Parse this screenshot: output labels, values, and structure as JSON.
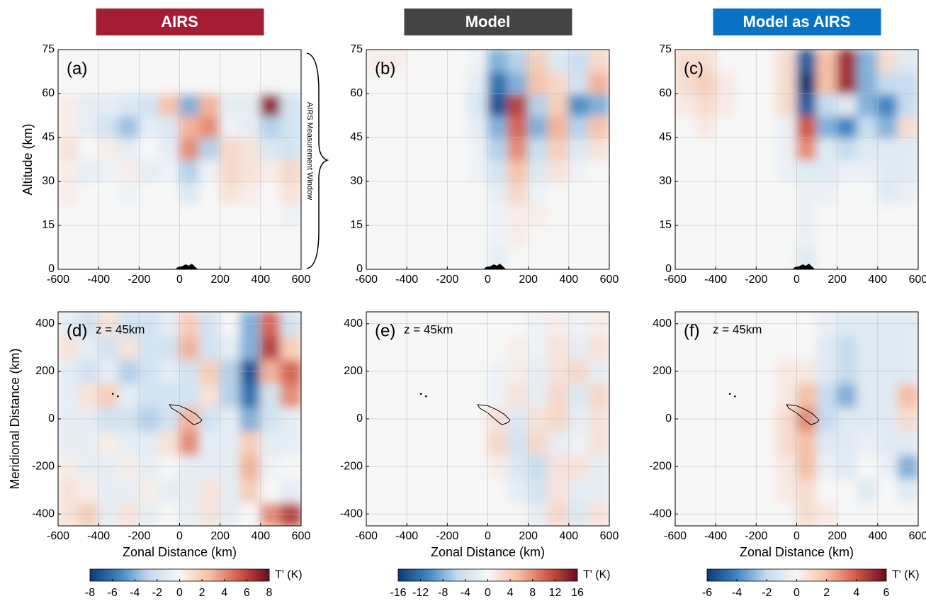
{
  "chart_data": [
    {
      "type": "heatmap",
      "title": "AIRS",
      "title_color": "#a51d32",
      "panel_label": "(a)",
      "ylabel": "Altitude (km)",
      "window_label": "AIRS Measurement Window",
      "x": [
        -550,
        -450,
        -350,
        -250,
        -150,
        -50,
        50,
        150,
        250,
        350,
        450,
        550
      ],
      "y": [
        3.75,
        11.25,
        18.75,
        26.25,
        33.75,
        41.25,
        48.75,
        56.25,
        63.75,
        71.25
      ],
      "z": [
        [
          0,
          0,
          0,
          0,
          0,
          0,
          0,
          0,
          0,
          0,
          0,
          0
        ],
        [
          0,
          0,
          0,
          0,
          0,
          0,
          0,
          0,
          0,
          0,
          0,
          0
        ],
        [
          0,
          0,
          0,
          0,
          0,
          0,
          0,
          0,
          0,
          0,
          0,
          -0.5
        ],
        [
          0.5,
          0,
          0,
          -0.5,
          0,
          0,
          -1.5,
          0,
          1,
          0.5,
          0,
          1
        ],
        [
          0.5,
          -1,
          -0.5,
          0.5,
          -1,
          -0.5,
          -3,
          -0.5,
          1.5,
          1,
          0.5,
          1.5
        ],
        [
          1,
          0,
          0.5,
          -1,
          0,
          -1,
          4,
          -3,
          1.5,
          1,
          -1.5,
          -2
        ],
        [
          0.5,
          -1,
          -2,
          -3.5,
          -1,
          -1.5,
          3,
          4,
          -0.5,
          -1,
          -3,
          -2
        ],
        [
          0.5,
          -1,
          -1,
          -1.5,
          -2,
          2.5,
          -4,
          3,
          -1,
          -1,
          7,
          -2
        ],
        [
          0,
          0,
          0,
          0,
          0,
          0,
          0,
          0,
          0,
          0,
          0,
          0
        ],
        [
          0,
          0,
          0,
          0,
          0,
          0,
          0,
          0,
          0,
          0,
          0,
          0
        ]
      ],
      "clim": [
        -8,
        8
      ],
      "colormap": [
        "#0b3b78",
        "#3f86c2",
        "#c6dcef",
        "#f7f7f7",
        "#f6c0a6",
        "#d2594a",
        "#6b0a1e"
      ],
      "xlim": [
        -600,
        600
      ],
      "ylim": [
        0,
        75
      ],
      "xticks": [
        -600,
        -400,
        -200,
        0,
        200,
        400,
        600
      ],
      "yticks": [
        0,
        15,
        30,
        45,
        60,
        75
      ],
      "grid": true
    },
    {
      "type": "heatmap",
      "title": "Model",
      "title_color": "#444444",
      "panel_label": "(b)",
      "x": [
        -550,
        -450,
        -350,
        -250,
        -150,
        -50,
        50,
        150,
        250,
        350,
        450,
        550
      ],
      "y": [
        3.75,
        11.25,
        18.75,
        26.25,
        33.75,
        41.25,
        48.75,
        56.25,
        63.75,
        71.25
      ],
      "z": [
        [
          0,
          0,
          0,
          0,
          0,
          0,
          -2,
          0,
          0,
          0,
          0,
          0
        ],
        [
          0,
          0,
          0,
          0,
          0,
          0,
          -1,
          1,
          0,
          0,
          0,
          0
        ],
        [
          0,
          0,
          0,
          0,
          0,
          0,
          -1,
          1,
          1,
          0,
          0,
          0
        ],
        [
          0,
          0,
          0,
          0,
          0,
          0,
          -2,
          3,
          -1,
          0,
          0,
          0
        ],
        [
          0,
          0,
          0,
          0,
          0,
          -1,
          -4,
          5,
          -3,
          2,
          -1,
          0
        ],
        [
          0,
          0,
          0,
          0,
          0,
          -1,
          -6,
          8,
          -5,
          4,
          -3,
          2
        ],
        [
          0,
          0,
          0,
          0,
          0,
          -2,
          -8,
          10,
          -8,
          6,
          -6,
          5
        ],
        [
          0,
          0,
          0,
          0,
          0,
          -3,
          -14,
          12,
          -6,
          4,
          -10,
          -8
        ],
        [
          0,
          0,
          0,
          0,
          0,
          -2,
          -12,
          -8,
          5,
          3,
          -4,
          6
        ],
        [
          1,
          1,
          0,
          0,
          0,
          -1,
          -8,
          -6,
          4,
          -3,
          -5,
          3
        ]
      ],
      "clim": [
        -16,
        16
      ],
      "colormap": [
        "#0b3b78",
        "#3f86c2",
        "#c6dcef",
        "#f7f7f7",
        "#f6c0a6",
        "#d2594a",
        "#6b0a1e"
      ],
      "xlim": [
        -600,
        600
      ],
      "ylim": [
        0,
        75
      ],
      "xticks": [
        -600,
        -400,
        -200,
        0,
        200,
        400,
        600
      ],
      "yticks": [
        0,
        15,
        30,
        45,
        60,
        75
      ],
      "grid": true
    },
    {
      "type": "heatmap",
      "title": "Model as AIRS",
      "title_color": "#0a72c4",
      "panel_label": "(c)",
      "x": [
        -550,
        -450,
        -350,
        -250,
        -150,
        -50,
        50,
        150,
        250,
        350,
        450,
        550
      ],
      "y": [
        3.75,
        11.25,
        18.75,
        26.25,
        33.75,
        41.25,
        48.75,
        56.25,
        63.75,
        71.25
      ],
      "z": [
        [
          0,
          0,
          0,
          0,
          0,
          0,
          -1,
          0,
          0,
          0,
          0,
          0
        ],
        [
          0,
          0,
          0,
          0,
          0,
          0,
          -0.5,
          0,
          0,
          0,
          0,
          0
        ],
        [
          0,
          0,
          0,
          0,
          0,
          0,
          -0.5,
          0,
          0,
          0,
          0,
          0
        ],
        [
          0,
          0,
          0,
          0,
          0,
          0,
          -0.5,
          -0.5,
          0,
          0,
          -1,
          -0.5
        ],
        [
          0,
          0,
          0,
          0,
          0,
          -0.5,
          -1,
          -1,
          -0.5,
          -0.5,
          -1,
          -1
        ],
        [
          0,
          0,
          0,
          0,
          0,
          -0.5,
          3,
          -1,
          -2,
          -1,
          -1,
          -1
        ],
        [
          0,
          0.5,
          0,
          0,
          0,
          -0.5,
          4,
          -3,
          -4,
          -2,
          -3,
          1
        ],
        [
          0.5,
          1,
          0.5,
          0,
          0,
          1,
          -5,
          -2,
          -1,
          -3,
          -4,
          -2
        ],
        [
          1,
          1.5,
          0.5,
          0,
          0,
          1,
          -6,
          2,
          5,
          -3,
          -2,
          -2
        ],
        [
          1,
          1,
          0,
          0,
          0,
          1,
          -5,
          2,
          5,
          -3,
          1,
          -1
        ]
      ],
      "clim": [
        -6,
        6
      ],
      "colormap": [
        "#0b3b78",
        "#3f86c2",
        "#c6dcef",
        "#f7f7f7",
        "#f6c0a6",
        "#d2594a",
        "#6b0a1e"
      ],
      "xlim": [
        -600,
        600
      ],
      "ylim": [
        0,
        75
      ],
      "xticks": [
        -600,
        -400,
        -200,
        0,
        200,
        400,
        600
      ],
      "yticks": [
        0,
        15,
        30,
        45,
        60,
        75
      ],
      "grid": true
    },
    {
      "type": "heatmap",
      "panel_label": "(d)",
      "annotation": "z = 45km",
      "xlabel": "Zonal Distance (km)",
      "ylabel": "Meridional Distance (km)",
      "x": [
        -550,
        -450,
        -350,
        -250,
        -150,
        -50,
        50,
        150,
        250,
        350,
        450,
        550
      ],
      "y": [
        -400,
        -300,
        -200,
        -100,
        0,
        100,
        200,
        300,
        400
      ],
      "z": [
        [
          1,
          2,
          -1,
          1,
          -1,
          0,
          -1,
          1,
          -1,
          0,
          4,
          6
        ],
        [
          1,
          0.5,
          -1,
          -1,
          0.5,
          -1,
          -1,
          1,
          -1,
          2,
          0,
          -1
        ],
        [
          0.5,
          -1,
          -1,
          0.5,
          -1,
          0,
          -1,
          -1,
          -1,
          3,
          -0.5,
          0
        ],
        [
          -1,
          -1,
          0.5,
          -1,
          -1,
          1,
          4,
          -1,
          -1,
          2,
          -1,
          -1
        ],
        [
          -1,
          -1,
          -2,
          -2,
          -3,
          -2,
          3,
          -2,
          -1,
          -4,
          -2,
          -1
        ],
        [
          -1,
          1,
          2,
          -1,
          -2,
          -2,
          -2,
          1,
          -3,
          -6,
          -2,
          4
        ],
        [
          -1,
          -2,
          -1,
          -3,
          -2,
          -1,
          -2,
          2,
          -3,
          -7,
          3,
          5
        ],
        [
          1,
          -1,
          -2,
          1,
          -2,
          -2,
          3,
          -2,
          -1,
          -4,
          6,
          2
        ],
        [
          -1,
          -2,
          1,
          -2,
          -2,
          -1,
          2,
          -2,
          0,
          -4,
          5,
          -2
        ]
      ],
      "clim": [
        -8,
        8
      ],
      "cticks": [
        -8,
        -6,
        -4,
        -2,
        0,
        2,
        4,
        6,
        8
      ],
      "colorbar_label": "T' (K)",
      "colormap": [
        "#0b3b78",
        "#3f86c2",
        "#c6dcef",
        "#f7f7f7",
        "#f6c0a6",
        "#d2594a",
        "#6b0a1e"
      ],
      "xlim": [
        -600,
        600
      ],
      "ylim": [
        -450,
        450
      ],
      "xticks": [
        -600,
        -400,
        -200,
        0,
        200,
        400,
        600
      ],
      "yticks": [
        -400,
        -200,
        0,
        200,
        400
      ],
      "grid": true
    },
    {
      "type": "heatmap",
      "panel_label": "(e)",
      "annotation": "z = 45km",
      "xlabel": "Zonal Distance (km)",
      "x": [
        -550,
        -450,
        -350,
        -250,
        -150,
        -50,
        50,
        150,
        250,
        350,
        450,
        550
      ],
      "y": [
        -400,
        -300,
        -200,
        -100,
        0,
        100,
        200,
        300,
        400
      ],
      "z": [
        [
          0,
          0,
          0,
          0,
          0,
          0,
          0,
          0,
          -2,
          3,
          -3,
          2
        ],
        [
          0,
          0,
          0,
          0,
          0,
          0,
          0,
          -2,
          -4,
          2,
          -2,
          -2
        ],
        [
          0,
          0,
          0,
          0,
          0,
          0,
          1,
          -3,
          -5,
          2,
          2,
          -2
        ],
        [
          0,
          0,
          0,
          0,
          0,
          0,
          3,
          -4,
          3,
          -2,
          -1,
          2
        ],
        [
          0,
          0,
          0,
          0,
          0,
          0,
          2,
          -3,
          2,
          3,
          -2,
          2
        ],
        [
          0,
          0,
          0,
          0,
          0,
          0,
          -1,
          2,
          -2,
          3,
          -3,
          3
        ],
        [
          0,
          0,
          0,
          0,
          0,
          0,
          -1,
          1,
          -2,
          2,
          3,
          -2
        ],
        [
          0,
          0,
          0,
          0,
          0,
          0,
          0,
          1,
          -1,
          2,
          -2,
          2
        ],
        [
          0,
          0,
          0,
          0,
          0,
          0,
          0,
          0,
          -1,
          1,
          -1,
          1
        ]
      ],
      "clim": [
        -16,
        16
      ],
      "cticks": [
        -16,
        -12,
        -8,
        -4,
        0,
        4,
        8,
        12,
        16
      ],
      "colorbar_label": "T' (K)",
      "colormap": [
        "#0b3b78",
        "#3f86c2",
        "#c6dcef",
        "#f7f7f7",
        "#f6c0a6",
        "#d2594a",
        "#6b0a1e"
      ],
      "xlim": [
        -600,
        600
      ],
      "ylim": [
        -450,
        450
      ],
      "xticks": [
        -600,
        -400,
        -200,
        0,
        200,
        400,
        600
      ],
      "yticks": [
        -400,
        -200,
        0,
        200,
        400
      ],
      "grid": true
    },
    {
      "type": "heatmap",
      "panel_label": "(f)",
      "annotation": "z = 45km",
      "xlabel": "Zonal Distance (km)",
      "x": [
        -550,
        -450,
        -350,
        -250,
        -150,
        -50,
        50,
        150,
        250,
        350,
        450,
        550
      ],
      "y": [
        -400,
        -300,
        -200,
        -100,
        0,
        100,
        200,
        300,
        400
      ],
      "z": [
        [
          0,
          0,
          0,
          0,
          0,
          0,
          1,
          0.5,
          0,
          0,
          0,
          0
        ],
        [
          0,
          0,
          0,
          0,
          0,
          0.5,
          1,
          0,
          0,
          -1,
          0,
          -1
        ],
        [
          0,
          0,
          0,
          0,
          0,
          0.5,
          2,
          -0.5,
          -1,
          0,
          -0.5,
          -3
        ],
        [
          0,
          0,
          0,
          0,
          0,
          1,
          2,
          -1,
          -1,
          -0.5,
          -1,
          -1
        ],
        [
          0,
          0,
          0,
          0,
          0,
          1,
          3,
          -2,
          -1,
          -1,
          -1,
          1
        ],
        [
          0,
          0,
          0,
          0,
          0,
          0.5,
          2,
          -2,
          -3,
          -1,
          -1,
          2
        ],
        [
          0,
          0,
          0,
          0,
          0,
          0.5,
          0.5,
          -1,
          -2,
          -1,
          -1,
          -1
        ],
        [
          0,
          0,
          0,
          0,
          0,
          0,
          0,
          -1,
          -2,
          -1,
          -1,
          -1
        ],
        [
          0,
          0,
          0,
          0,
          0,
          0,
          0,
          -0.5,
          -1,
          -1,
          -1,
          -1
        ]
      ],
      "clim": [
        -6,
        6
      ],
      "cticks": [
        -6,
        -4,
        -2,
        0,
        2,
        4,
        6
      ],
      "colorbar_label": "T' (K)",
      "colormap": [
        "#0b3b78",
        "#3f86c2",
        "#c6dcef",
        "#f7f7f7",
        "#f6c0a6",
        "#d2594a",
        "#6b0a1e"
      ],
      "xlim": [
        -600,
        600
      ],
      "ylim": [
        -450,
        450
      ],
      "xticks": [
        -600,
        -400,
        -200,
        0,
        200,
        400,
        600
      ],
      "yticks": [
        -400,
        -200,
        0,
        200,
        400
      ],
      "grid": true
    }
  ]
}
